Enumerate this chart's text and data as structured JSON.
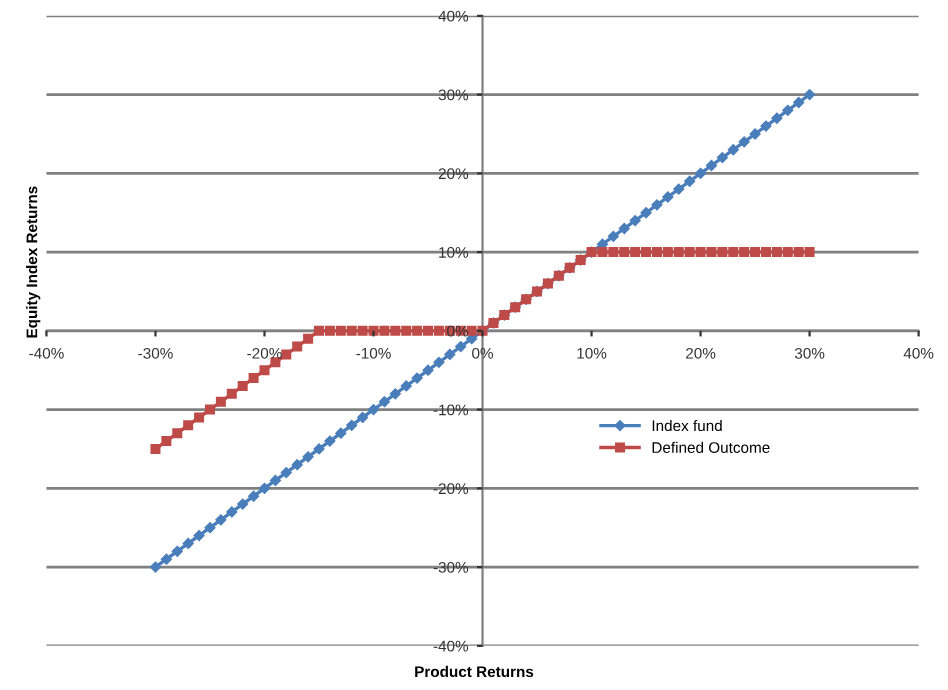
{
  "chart_data": {
    "type": "line",
    "xlabel": "Product Returns",
    "ylabel": "Equity Index Returns",
    "x": [
      -30,
      -29,
      -28,
      -27,
      -26,
      -25,
      -24,
      -23,
      -22,
      -21,
      -20,
      -19,
      -18,
      -17,
      -16,
      -15,
      -14,
      -13,
      -12,
      -11,
      -10,
      -9,
      -8,
      -7,
      -6,
      -5,
      -4,
      -3,
      -2,
      -1,
      0,
      1,
      2,
      3,
      4,
      5,
      6,
      7,
      8,
      9,
      10,
      11,
      12,
      13,
      14,
      15,
      16,
      17,
      18,
      19,
      20,
      21,
      22,
      23,
      24,
      25,
      26,
      27,
      28,
      29,
      30
    ],
    "series": [
      {
        "name": "Index fund",
        "color": "#4a7ebb",
        "marker": "diamond",
        "values": [
          -30,
          -29,
          -28,
          -27,
          -26,
          -25,
          -24,
          -23,
          -22,
          -21,
          -20,
          -19,
          -18,
          -17,
          -16,
          -15,
          -14,
          -13,
          -12,
          -11,
          -10,
          -9,
          -8,
          -7,
          -6,
          -5,
          -4,
          -3,
          -2,
          -1,
          0,
          1,
          2,
          3,
          4,
          5,
          6,
          7,
          8,
          9,
          10,
          11,
          12,
          13,
          14,
          15,
          16,
          17,
          18,
          19,
          20,
          21,
          22,
          23,
          24,
          25,
          26,
          27,
          28,
          29,
          30
        ]
      },
      {
        "name": "Defined Outcome",
        "color": "#be4b48",
        "marker": "square",
        "values": [
          -15,
          -14,
          -13,
          -12,
          -11,
          -10,
          -9,
          -8,
          -7,
          -6,
          -5,
          -4,
          -3,
          -2,
          -1,
          0,
          0,
          0,
          0,
          0,
          0,
          0,
          0,
          0,
          0,
          0,
          0,
          0,
          0,
          0,
          0,
          1,
          2,
          3,
          4,
          5,
          6,
          7,
          8,
          9,
          10,
          10,
          10,
          10,
          10,
          10,
          10,
          10,
          10,
          10,
          10,
          10,
          10,
          10,
          10,
          10,
          10,
          10,
          10,
          10,
          10
        ]
      }
    ],
    "xlim": [
      -40,
      40
    ],
    "ylim": [
      -40,
      40
    ],
    "xticks": [
      {
        "value": -40,
        "label": "-40%"
      },
      {
        "value": -30,
        "label": "-30%"
      },
      {
        "value": -20,
        "label": "-20%"
      },
      {
        "value": -10,
        "label": "-10%"
      },
      {
        "value": 0,
        "label": "0%"
      },
      {
        "value": 10,
        "label": "10%"
      },
      {
        "value": 20,
        "label": "20%"
      },
      {
        "value": 30,
        "label": "30%"
      },
      {
        "value": 40,
        "label": "40%"
      }
    ],
    "yticks": [
      {
        "value": -40,
        "label": "-40%"
      },
      {
        "value": -30,
        "label": "-30%"
      },
      {
        "value": -20,
        "label": "-20%"
      },
      {
        "value": -10,
        "label": "-10%"
      },
      {
        "value": 0,
        "label": "0%"
      },
      {
        "value": 10,
        "label": "10%"
      },
      {
        "value": 20,
        "label": "20%"
      },
      {
        "value": 30,
        "label": "30%"
      },
      {
        "value": 40,
        "label": "40%"
      }
    ],
    "grid": "y",
    "legend": "center right",
    "line_style": "solid"
  }
}
